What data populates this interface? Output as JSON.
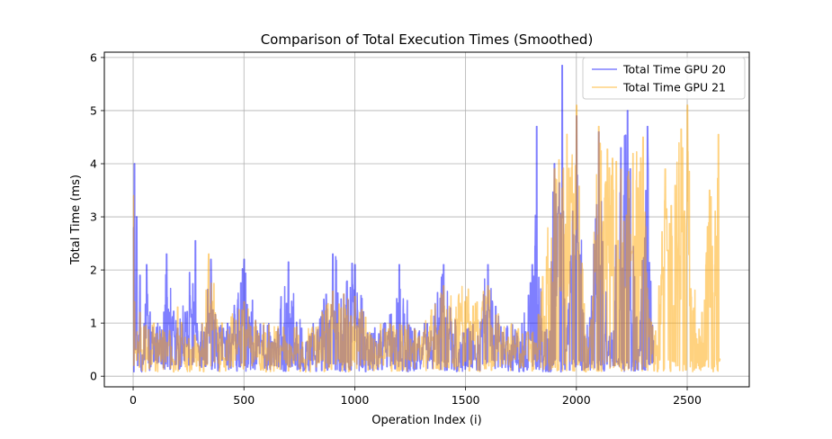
{
  "chart_data": {
    "type": "line",
    "title": "Comparison of Total Execution Times (Smoothed)",
    "xlabel": "Operation Index (i)",
    "ylabel": "Total Time (ms)",
    "xlim": [
      -130,
      2780
    ],
    "ylim": [
      -0.2,
      6.1
    ],
    "xticks": [
      0,
      500,
      1000,
      1500,
      2000,
      2500
    ],
    "yticks": [
      0,
      1,
      2,
      3,
      4,
      5,
      6
    ],
    "grid": true,
    "legend_position": "top-right",
    "series": [
      {
        "name": "Total Time GPU 20",
        "color": "#0000ff",
        "alpha": 0.5,
        "n_points": 2350,
        "keyframes": [
          [
            0,
            2.8
          ],
          [
            5,
            4.0
          ],
          [
            10,
            0.5
          ],
          [
            15,
            3.0
          ],
          [
            20,
            0.2
          ],
          [
            30,
            1.9
          ],
          [
            40,
            0.4
          ],
          [
            60,
            2.1
          ],
          [
            100,
            0.3
          ],
          [
            150,
            2.3
          ],
          [
            200,
            0.9
          ],
          [
            280,
            2.55
          ],
          [
            300,
            0.2
          ],
          [
            350,
            2.2
          ],
          [
            400,
            0.3
          ],
          [
            500,
            2.2
          ],
          [
            600,
            0.2
          ],
          [
            700,
            2.15
          ],
          [
            800,
            0.3
          ],
          [
            900,
            2.3
          ],
          [
            1000,
            2.1
          ],
          [
            1100,
            0.2
          ],
          [
            1200,
            2.1
          ],
          [
            1300,
            0.3
          ],
          [
            1400,
            2.1
          ],
          [
            1500,
            0.2
          ],
          [
            1600,
            2.1
          ],
          [
            1700,
            0.3
          ],
          [
            1800,
            2.1
          ],
          [
            1820,
            4.7
          ],
          [
            1850,
            0.3
          ],
          [
            1900,
            4.0
          ],
          [
            1935,
            5.85
          ],
          [
            1950,
            0.5
          ],
          [
            2000,
            4.9
          ],
          [
            2050,
            0.3
          ],
          [
            2100,
            4.6
          ],
          [
            2150,
            0.4
          ],
          [
            2200,
            4.3
          ],
          [
            2230,
            5.0
          ],
          [
            2280,
            0.5
          ],
          [
            2320,
            4.7
          ],
          [
            2350,
            0.8
          ]
        ]
      },
      {
        "name": "Total Time GPU 21",
        "color": "#ffa500",
        "alpha": 0.5,
        "n_points": 2650,
        "keyframes": [
          [
            0,
            3.4
          ],
          [
            5,
            1.4
          ],
          [
            15,
            0.3
          ],
          [
            30,
            1.2
          ],
          [
            100,
            0.1
          ],
          [
            200,
            1.3
          ],
          [
            300,
            0.1
          ],
          [
            340,
            2.3
          ],
          [
            400,
            1.0
          ],
          [
            500,
            1.4
          ],
          [
            700,
            0.1
          ],
          [
            900,
            1.6
          ],
          [
            1000,
            1.5
          ],
          [
            1200,
            0.1
          ],
          [
            1400,
            1.7
          ],
          [
            1600,
            1.7
          ],
          [
            1800,
            0.1
          ],
          [
            1900,
            3.9
          ],
          [
            2000,
            5.1
          ],
          [
            2050,
            0.2
          ],
          [
            2100,
            4.7
          ],
          [
            2200,
            3.9
          ],
          [
            2300,
            4.5
          ],
          [
            2350,
            0.1
          ],
          [
            2400,
            3.9
          ],
          [
            2500,
            5.1
          ],
          [
            2550,
            0.2
          ],
          [
            2600,
            3.5
          ],
          [
            2640,
            4.55
          ],
          [
            2650,
            0.6
          ]
        ]
      }
    ]
  }
}
